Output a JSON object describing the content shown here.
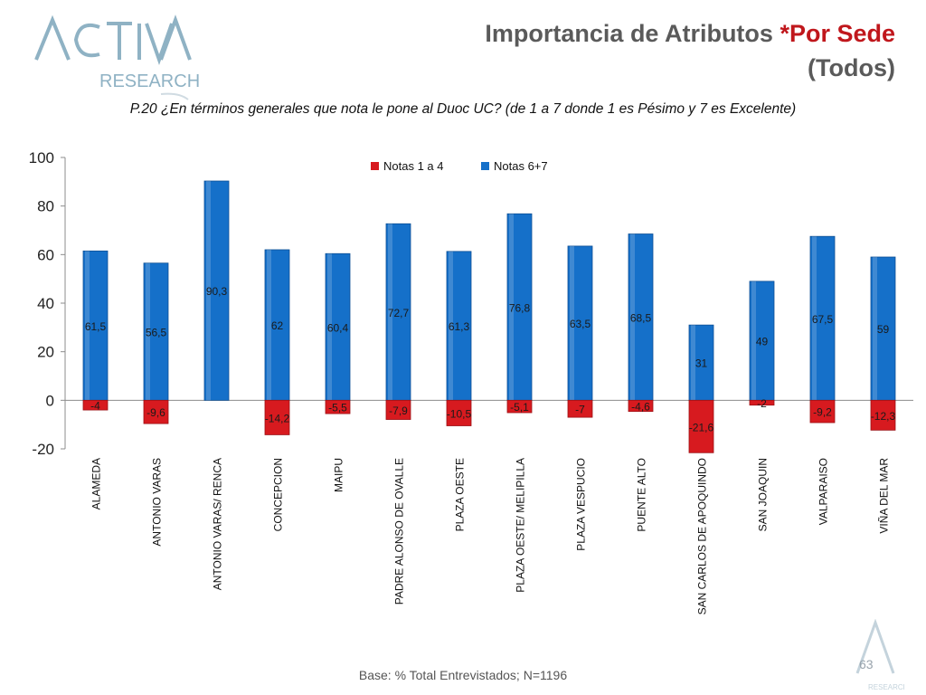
{
  "logo": {
    "word": "ACTIVA",
    "sub": "RESEARCH"
  },
  "title": {
    "line1_main": "Importancia de Atributos ",
    "line1_accent": "*Por Sede",
    "line2": "(Todos)"
  },
  "question": "P.20  ¿En términos generales que nota le pone al Duoc UC? (de 1 a 7 donde 1 es Pésimo y 7 es Excelente)",
  "footer": "Base: % Total Entrevistados; N=1196",
  "page_number": "63",
  "colors": {
    "red": "#d71a1f",
    "blue": "#1570c9",
    "accent": "#c0171c"
  },
  "chart_data": {
    "type": "bar",
    "categories": [
      "ALAMEDA",
      "ANTONIO VARAS",
      "ANTONIO VARAS/ RENCA",
      "CONCEPCION",
      "MAIPU",
      "PADRE ALONSO DE OVALLE",
      "PLAZA OESTE",
      "PLAZA OESTE/ MELIPILLA",
      "PLAZA VESPUCIO",
      "PUENTE ALTO",
      "SAN CARLOS DE APOQUINDO",
      "SAN JOAQUIN",
      "VALPARAISO",
      "VIÑA DEL MAR"
    ],
    "series": [
      {
        "name": "Notas 1 a 4",
        "color": "#d71a1f",
        "values": [
          -4,
          -9.6,
          null,
          -14.2,
          -5.5,
          -7.9,
          -10.5,
          -5.1,
          -7,
          -4.6,
          -21.6,
          -2,
          -9.2,
          -12.3
        ],
        "labels": [
          "-4",
          "-9,6",
          "",
          "-14,2",
          "-5,5",
          "-7,9",
          "-10,5",
          "-5,1",
          "-7",
          "-4,6",
          "-21,6",
          "-2",
          "-9,2",
          "-12,3"
        ]
      },
      {
        "name": "Notas 6+7",
        "color": "#1570c9",
        "values": [
          61.5,
          56.5,
          90.3,
          62,
          60.4,
          72.7,
          61.3,
          76.8,
          63.5,
          68.5,
          31,
          49,
          67.5,
          59
        ],
        "labels": [
          "61,5",
          "56,5",
          "90,3",
          "62",
          "60,4",
          "72,7",
          "61,3",
          "76,8",
          "63,5",
          "68,5",
          "31",
          "49",
          "67,5",
          "59"
        ]
      }
    ],
    "yticks": [
      "-20",
      "0",
      "20",
      "40",
      "60",
      "80",
      "100"
    ],
    "ylim": [
      -20,
      100
    ],
    "legend_position": "top-center",
    "grid": false
  }
}
